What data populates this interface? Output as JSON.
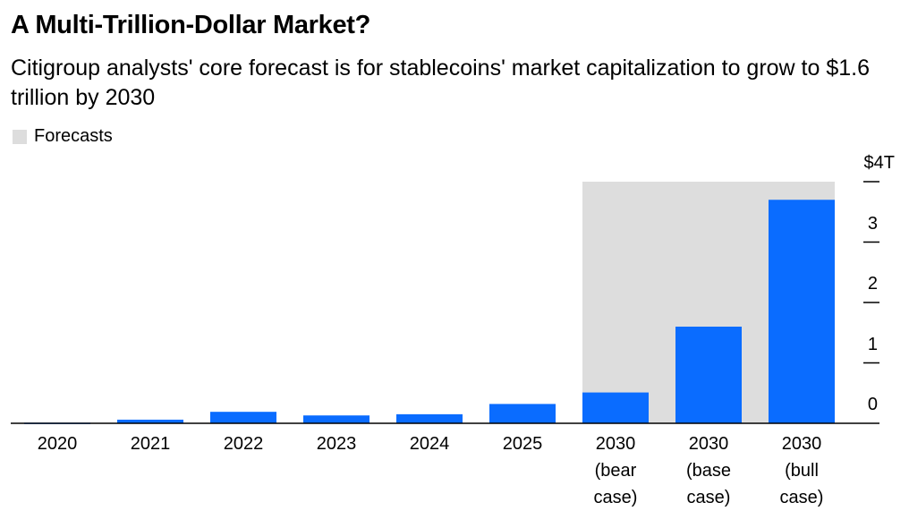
{
  "title": "A Multi-Trillion-Dollar Market?",
  "subtitle": "Citigroup analysts' core forecast is for stablecoins' market capitalization to grow to $1.6 trillion by 2030",
  "legend": {
    "label": "Forecasts",
    "color": "#dddddd"
  },
  "colors": {
    "bar": "#0a6cff",
    "forecast_bg": "#dddddd",
    "axis": "#000000"
  },
  "chart_data": {
    "type": "bar",
    "title": "A Multi-Trillion-Dollar Market?",
    "xlabel": "",
    "ylabel": "",
    "ylim": [
      0,
      4
    ],
    "yticks": [
      0,
      1,
      2,
      3,
      4
    ],
    "ytick_labels": [
      "0",
      "1",
      "2",
      "3",
      "$4T"
    ],
    "categories": [
      [
        "2020"
      ],
      [
        "2021"
      ],
      [
        "2022"
      ],
      [
        "2023"
      ],
      [
        "2024"
      ],
      [
        "2025"
      ],
      [
        "2030",
        "(bear",
        "case)"
      ],
      [
        "2030",
        "(base",
        "case)"
      ],
      [
        "2030",
        "(bull",
        "case)"
      ]
    ],
    "values": [
      0.01,
      0.06,
      0.19,
      0.13,
      0.15,
      0.32,
      0.51,
      1.6,
      3.7
    ],
    "forecast_categories": [
      6,
      7,
      8
    ]
  }
}
